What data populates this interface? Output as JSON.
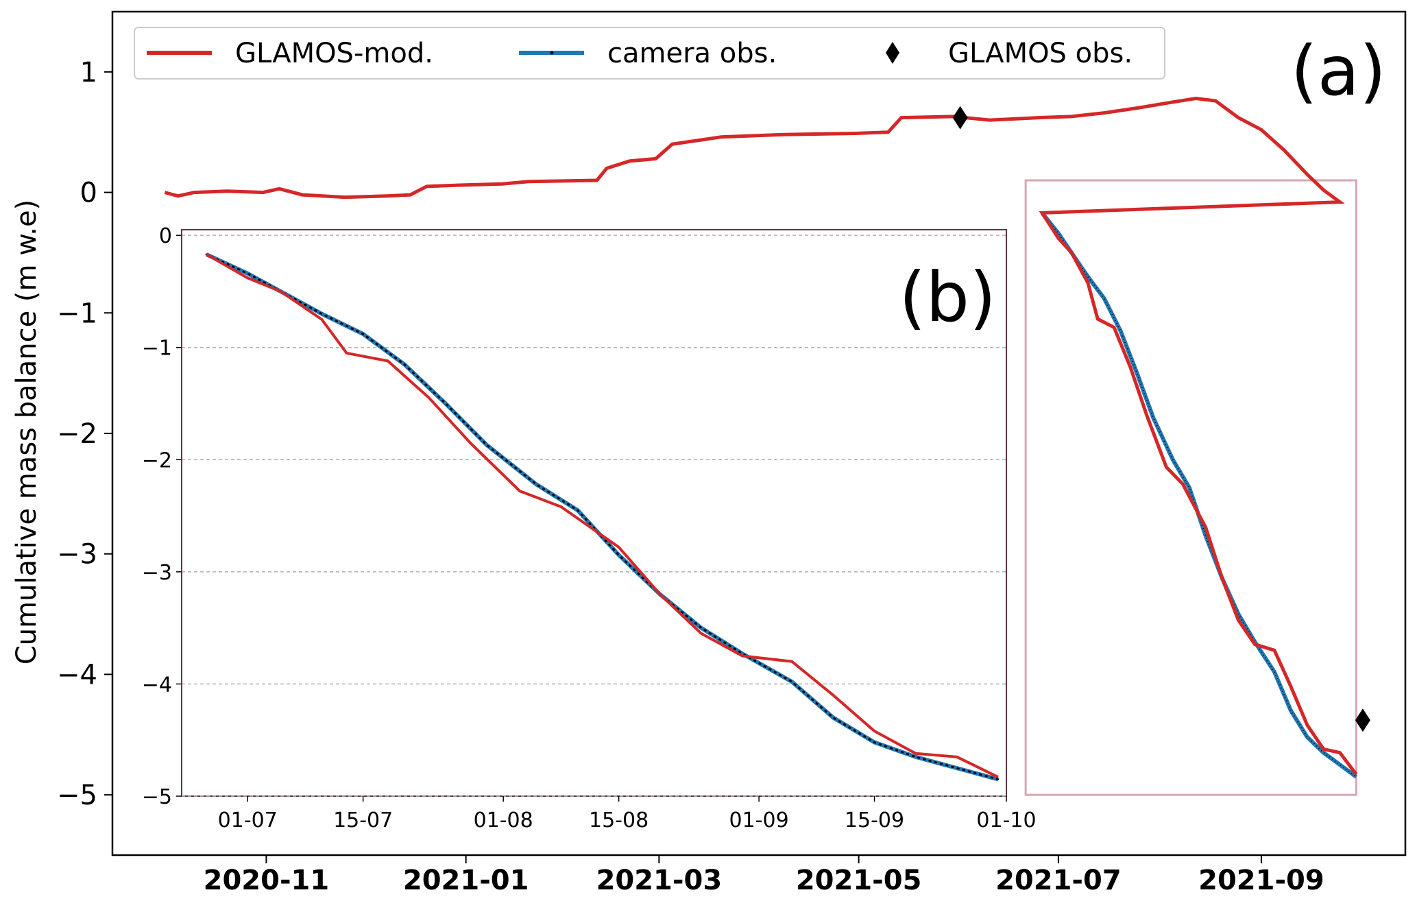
{
  "chart_data": [
    {
      "panel": "(a)",
      "type": "line",
      "title": "",
      "xlabel": "",
      "ylabel": "Cumulative mass balance (m w.e)",
      "x_type": "date",
      "xlim": [
        "2020-09-15",
        "2021-10-15"
      ],
      "ylim": [
        -5.5,
        1.5
      ],
      "xticks": [
        "2020-11-01",
        "2021-01-01",
        "2021-03-01",
        "2021-05-01",
        "2021-07-01",
        "2021-09-01"
      ],
      "xtick_labels": [
        "2020-11",
        "2021-01",
        "2021-03",
        "2021-05",
        "2021-07",
        "2021-09"
      ],
      "yticks": [
        1,
        0,
        -1,
        -2,
        -3,
        -4,
        -5
      ],
      "ytick_labels": [
        "1",
        "0",
        "−1",
        "−2",
        "−3",
        "−4",
        "−5"
      ],
      "grid": false,
      "legend_position": "top-left",
      "legend": [
        {
          "label": "GLAMOS-mod.",
          "marker": "line",
          "color": "#d62728"
        },
        {
          "label": "camera obs.",
          "marker": "line-with-dots",
          "color": "#1f77b4"
        },
        {
          "label": "GLAMOS obs.",
          "marker": "diamond",
          "color": "#000000"
        }
      ],
      "highlight_box": {
        "x": [
          "2021-06-21",
          "2021-09-30"
        ],
        "y": [
          -5.0,
          0.1
        ],
        "color": "#d9a7b0",
        "meaning": "region shown in inset (b)"
      },
      "series": [
        {
          "name": "GLAMOS-mod.",
          "color": "#d62728",
          "style": "solid",
          "points": [
            [
              "2020-10-01",
              0.0
            ],
            [
              "2020-10-05",
              -0.03
            ],
            [
              "2020-10-10",
              0.0
            ],
            [
              "2020-10-20",
              0.01
            ],
            [
              "2020-10-31",
              0.0
            ],
            [
              "2020-11-05",
              0.03
            ],
            [
              "2020-11-12",
              -0.02
            ],
            [
              "2020-11-25",
              -0.04
            ],
            [
              "2020-12-08",
              -0.03
            ],
            [
              "2020-12-15",
              -0.02
            ],
            [
              "2020-12-20",
              0.05
            ],
            [
              "2020-12-30",
              0.06
            ],
            [
              "2021-01-12",
              0.07
            ],
            [
              "2021-01-20",
              0.09
            ],
            [
              "2021-02-10",
              0.1
            ],
            [
              "2021-02-13",
              0.2
            ],
            [
              "2021-02-20",
              0.26
            ],
            [
              "2021-02-28",
              0.28
            ],
            [
              "2021-03-05",
              0.4
            ],
            [
              "2021-03-20",
              0.46
            ],
            [
              "2021-04-08",
              0.48
            ],
            [
              "2021-04-30",
              0.49
            ],
            [
              "2021-05-10",
              0.5
            ],
            [
              "2021-05-14",
              0.62
            ],
            [
              "2021-05-30",
              0.63
            ],
            [
              "2021-06-10",
              0.6
            ],
            [
              "2021-06-25",
              0.62
            ],
            [
              "2021-07-05",
              0.63
            ],
            [
              "2021-07-15",
              0.66
            ],
            [
              "2021-07-25",
              0.7
            ],
            [
              "2021-08-05",
              0.75
            ],
            [
              "2021-08-12",
              0.78
            ],
            [
              "2021-08-18",
              0.76
            ],
            [
              "2021-08-25",
              0.62
            ],
            [
              "2021-09-01",
              0.52
            ],
            [
              "2021-09-08",
              0.35
            ],
            [
              "2021-09-15",
              0.15
            ],
            [
              "2021-09-20",
              0.02
            ],
            [
              "2021-09-25",
              -0.08
            ]
          ]
        },
        {
          "name": "GLAMOS obs.",
          "type": "scatter",
          "color": "#000000",
          "marker": "diamond",
          "points": [
            [
              "2021-06-01",
              0.62
            ],
            [
              "2021-10-02",
              -4.38
            ]
          ]
        }
      ]
    },
    {
      "panel": "(b)",
      "type": "line",
      "title": "",
      "xlabel": "",
      "ylabel": "",
      "x_type": "date",
      "xlim": [
        "2021-06-23",
        "2021-10-01"
      ],
      "ylim": [
        -5.0,
        0.05
      ],
      "xticks": [
        "2021-07-01",
        "2021-07-15",
        "2021-08-01",
        "2021-08-15",
        "2021-09-01",
        "2021-09-15",
        "2021-10-01"
      ],
      "xtick_labels": [
        "01-07",
        "15-07",
        "01-08",
        "15-08",
        "01-09",
        "15-09",
        "01-10"
      ],
      "yticks": [
        0,
        -1,
        -2,
        -3,
        -4,
        -5
      ],
      "ytick_labels": [
        "0",
        "−1",
        "−2",
        "−3",
        "−4",
        "−5"
      ],
      "grid": "horizontal dashed",
      "series": [
        {
          "name": "camera obs.",
          "color": "#1f77b4",
          "marker": "dot",
          "points": [
            [
              "2021-06-26",
              -0.17
            ],
            [
              "2021-07-01",
              -0.34
            ],
            [
              "2021-07-05",
              -0.5
            ],
            [
              "2021-07-10",
              -0.7
            ],
            [
              "2021-07-15",
              -0.88
            ],
            [
              "2021-07-20",
              -1.15
            ],
            [
              "2021-07-25",
              -1.5
            ],
            [
              "2021-07-30",
              -1.87
            ],
            [
              "2021-08-05",
              -2.22
            ],
            [
              "2021-08-10",
              -2.45
            ],
            [
              "2021-08-15",
              -2.85
            ],
            [
              "2021-08-20",
              -3.2
            ],
            [
              "2021-08-25",
              -3.5
            ],
            [
              "2021-08-30",
              -3.73
            ],
            [
              "2021-09-05",
              -3.98
            ],
            [
              "2021-09-10",
              -4.3
            ],
            [
              "2021-09-15",
              -4.52
            ],
            [
              "2021-09-20",
              -4.65
            ],
            [
              "2021-09-25",
              -4.75
            ],
            [
              "2021-09-30",
              -4.85
            ]
          ]
        },
        {
          "name": "GLAMOS-mod.",
          "color": "#d62728",
          "style": "solid",
          "points": [
            [
              "2021-06-26",
              -0.17
            ],
            [
              "2021-07-01",
              -0.38
            ],
            [
              "2021-07-05",
              -0.5
            ],
            [
              "2021-07-10",
              -0.75
            ],
            [
              "2021-07-13",
              -1.05
            ],
            [
              "2021-07-18",
              -1.12
            ],
            [
              "2021-07-23",
              -1.45
            ],
            [
              "2021-07-28",
              -1.85
            ],
            [
              "2021-08-03",
              -2.28
            ],
            [
              "2021-08-08",
              -2.42
            ],
            [
              "2021-08-15",
              -2.78
            ],
            [
              "2021-08-20",
              -3.2
            ],
            [
              "2021-08-25",
              -3.55
            ],
            [
              "2021-08-30",
              -3.75
            ],
            [
              "2021-09-05",
              -3.8
            ],
            [
              "2021-09-10",
              -4.1
            ],
            [
              "2021-09-15",
              -4.42
            ],
            [
              "2021-09-20",
              -4.62
            ],
            [
              "2021-09-25",
              -4.65
            ],
            [
              "2021-09-30",
              -4.83
            ]
          ]
        }
      ]
    }
  ],
  "labels": {
    "panel_a": "(a)",
    "panel_b": "(b)"
  }
}
